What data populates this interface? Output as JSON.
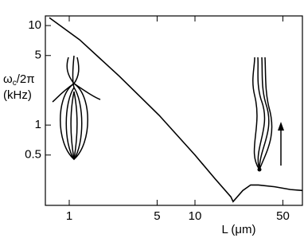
{
  "chart_data": {
    "type": "line",
    "x_label": "L (μm)",
    "y_label": [
      "ω",
      "c",
      "/2π"
    ],
    "y_unit": "(kHz)",
    "xscale": "log",
    "yscale": "log",
    "x": [
      0.695,
      1.21,
      2.5,
      5.2,
      10,
      14.4,
      19.3,
      20.1,
      24,
      27.7,
      32,
      43,
      57.5,
      71.5
    ],
    "series": [
      {
        "color": "#000000",
        "values": [
          12.0,
          7.2,
          3.1,
          1.25,
          0.5,
          0.29,
          0.19,
          0.17,
          0.22,
          0.25,
          0.25,
          0.24,
          0.225,
          0.22
        ]
      }
    ],
    "xlim": [
      0.646,
      71.5
    ],
    "ylim": [
      0.156,
      12.5
    ],
    "xticks": [
      1,
      5,
      10,
      50
    ],
    "yticks": [
      0.5,
      1,
      5,
      10
    ]
  }
}
